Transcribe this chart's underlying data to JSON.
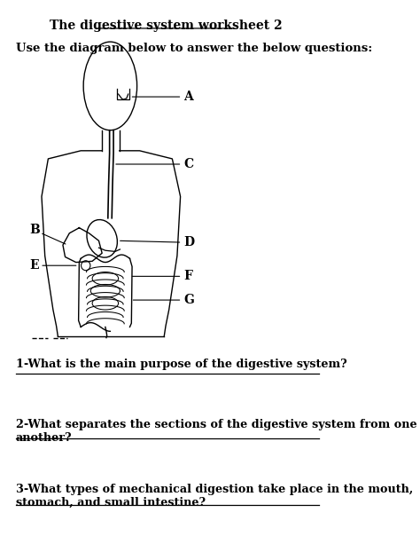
{
  "title": "The digestive system worksheet 2",
  "subtitle": "Use the diagram below to answer the below questions:",
  "questions": [
    "1-What is the main purpose of the digestive system?",
    "2-What separates the sections of the digestive system from one\nanother?",
    "3-What types of mechanical digestion take place in the mouth,\nstomach, and small intestine?"
  ],
  "bg_color": "#ffffff",
  "text_color": "#000000",
  "line_color": "#000000"
}
